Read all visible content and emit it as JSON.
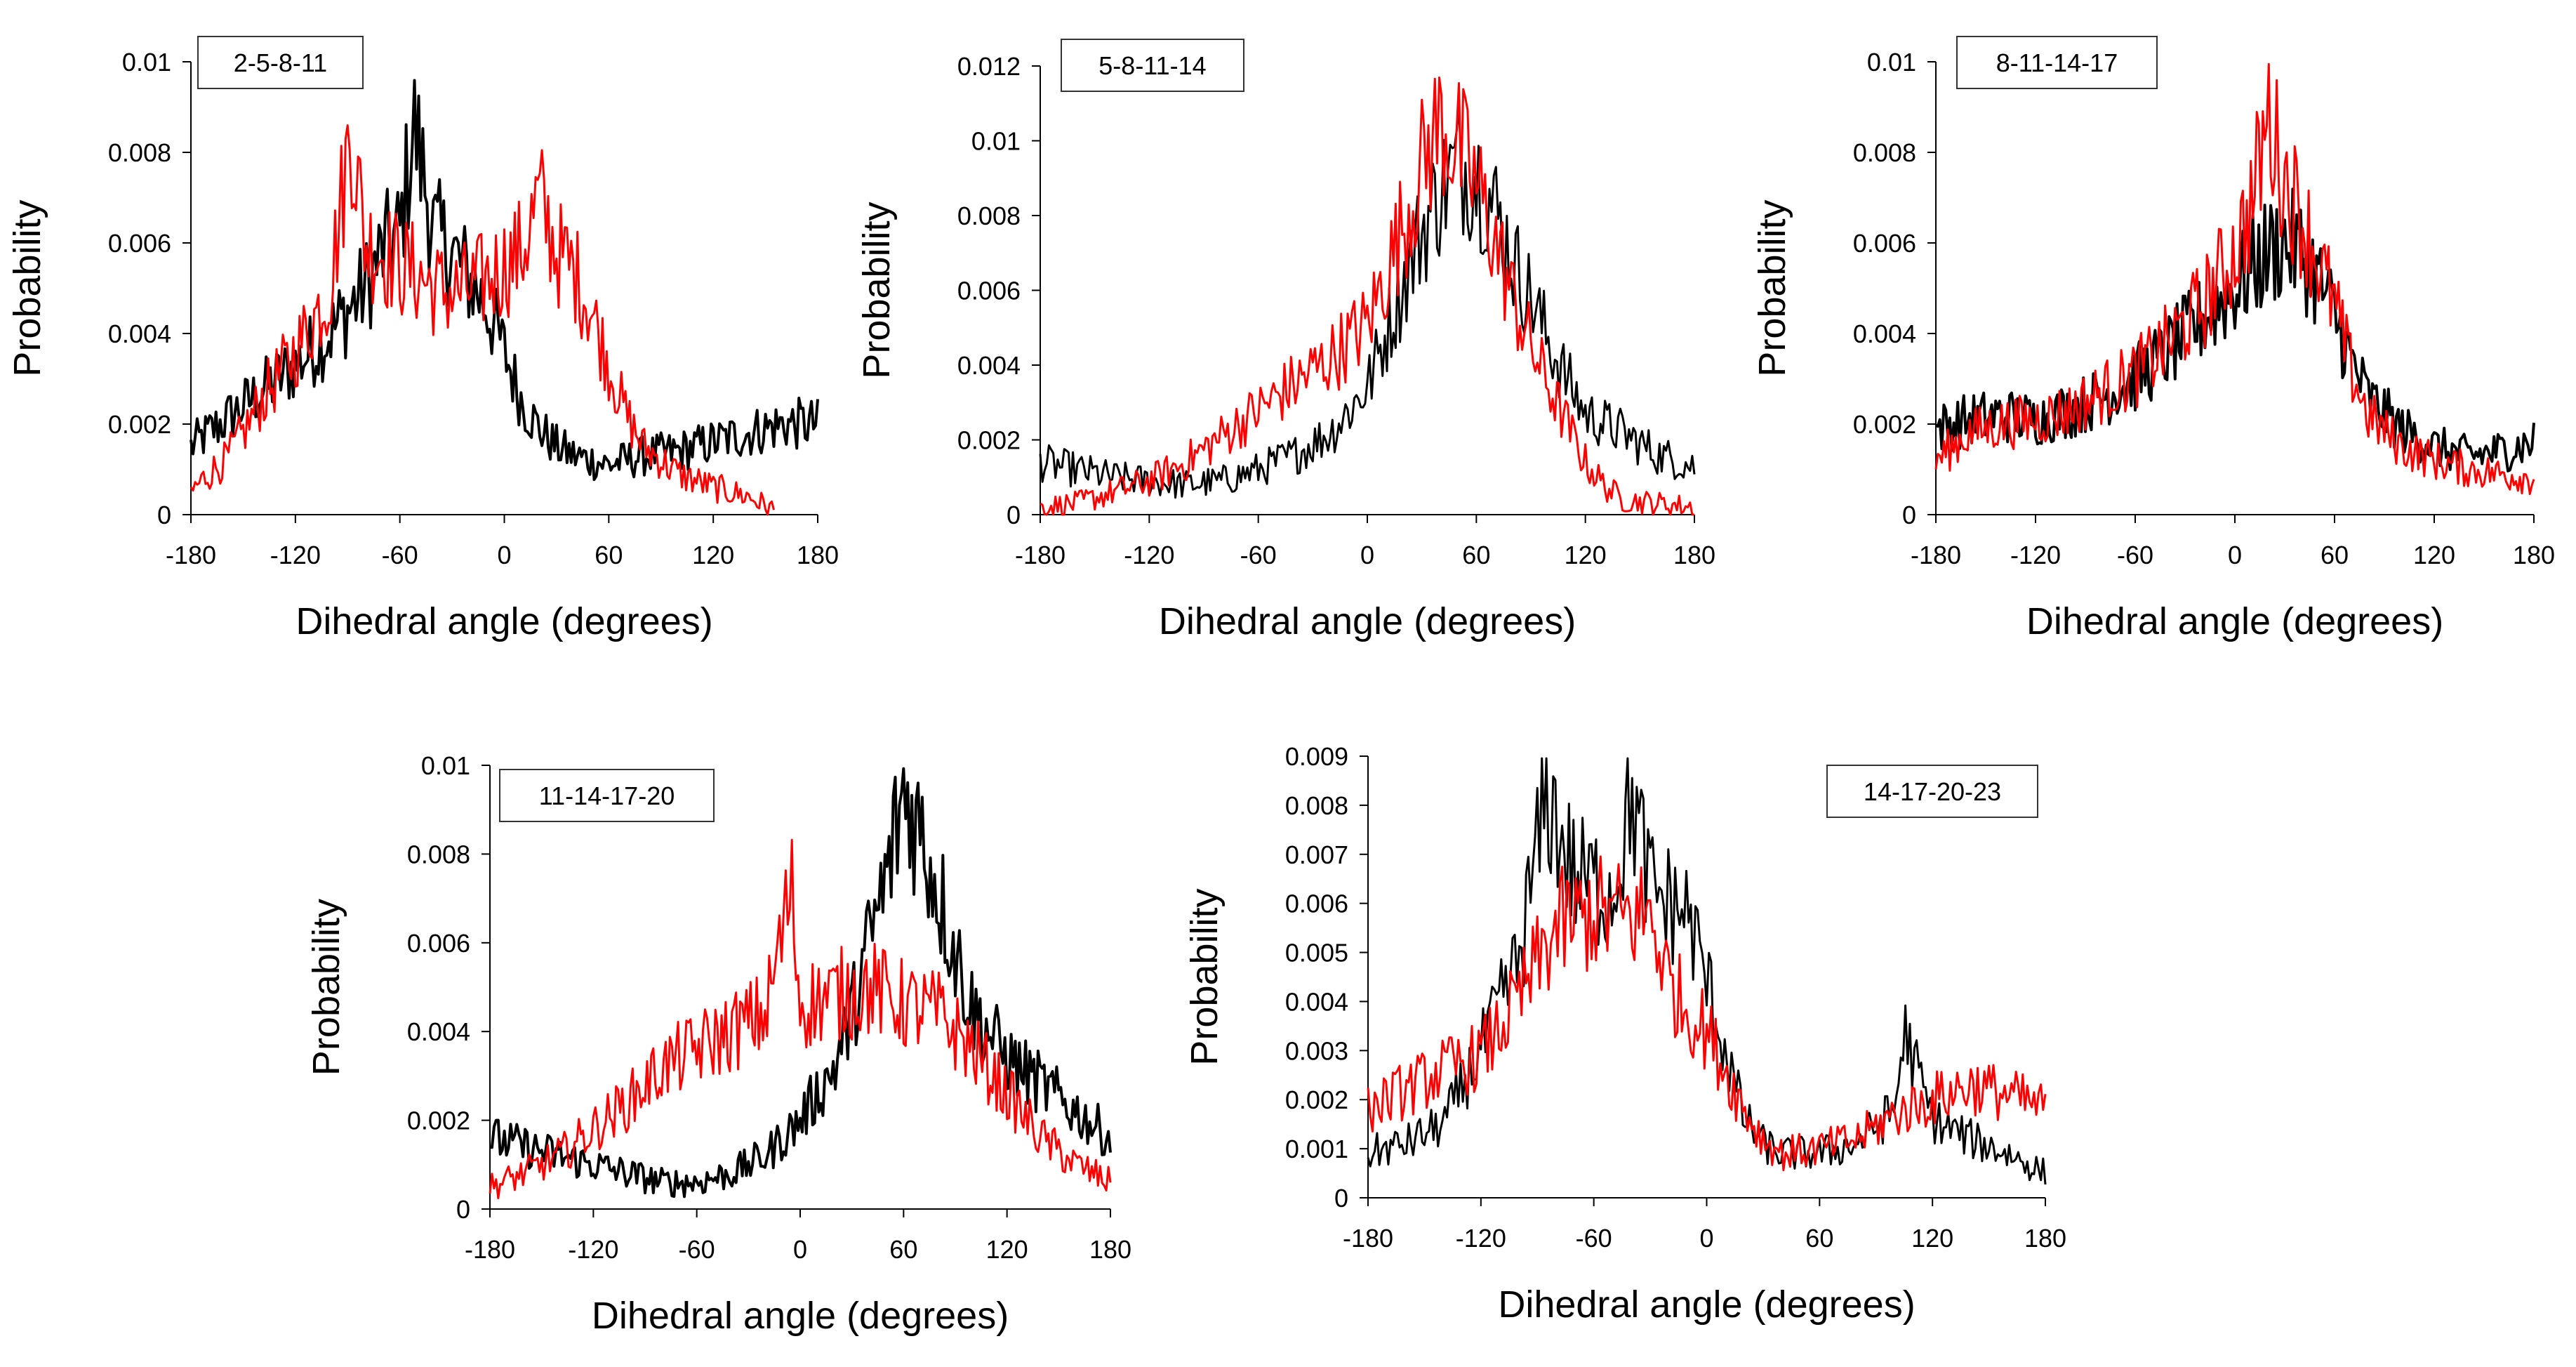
{
  "colors": {
    "series_black": "#000000",
    "series_red": "#ff0000",
    "axis": "#000000"
  },
  "chart_data": [
    {
      "type": "line",
      "label": "2-5-8-11",
      "xlabel": "Dihedral angle (degrees)",
      "ylabel": "Probability",
      "xlim": [
        -180,
        180
      ],
      "ylim": [
        0,
        0.01
      ],
      "xticks": [
        "-180",
        "-120",
        "-60",
        "0",
        "60",
        "120",
        "180"
      ],
      "yticks": [
        "0",
        "0.002",
        "0.004",
        "0.006",
        "0.008",
        "0.01"
      ],
      "series": [
        {
          "name": "black",
          "color": "#000000",
          "x": [
            -180,
            -160,
            -140,
            -120,
            -100,
            -80,
            -70,
            -60,
            -52,
            -40,
            -30,
            -20,
            -10,
            0,
            10,
            20,
            30,
            40,
            50,
            60,
            80,
            100,
            120,
            140,
            160,
            180
          ],
          "y": [
            0.0015,
            0.0021,
            0.0027,
            0.0033,
            0.004,
            0.005,
            0.0058,
            0.0062,
            0.0086,
            0.0062,
            0.0058,
            0.0052,
            0.0046,
            0.0036,
            0.0025,
            0.0019,
            0.0015,
            0.0013,
            0.0012,
            0.0011,
            0.0013,
            0.0014,
            0.0016,
            0.0018,
            0.002,
            0.002
          ]
        },
        {
          "name": "red",
          "color": "#ff0000",
          "x": [
            -180,
            -170,
            -160,
            -150,
            -140,
            -120,
            -100,
            -88,
            -80,
            -70,
            -60,
            -50,
            -40,
            -30,
            -20,
            -10,
            0,
            10,
            20,
            30,
            40,
            50,
            60,
            70,
            80,
            100,
            120,
            140,
            150,
            155
          ],
          "y": [
            0.0005,
            0.0009,
            0.0012,
            0.0018,
            0.0025,
            0.0036,
            0.005,
            0.0086,
            0.006,
            0.0058,
            0.0055,
            0.0053,
            0.005,
            0.0049,
            0.005,
            0.0052,
            0.0055,
            0.0058,
            0.007,
            0.0058,
            0.0054,
            0.0045,
            0.0033,
            0.0022,
            0.0015,
            0.0009,
            0.0006,
            0.0004,
            0.0002,
            0.0001
          ]
        }
      ]
    },
    {
      "type": "line",
      "label": "5-8-11-14",
      "xlabel": "Dihedral angle (degrees)",
      "ylabel": "Probability",
      "xlim": [
        -180,
        180
      ],
      "ylim": [
        0,
        0.012
      ],
      "xticks": [
        "-180",
        "-120",
        "-60",
        "0",
        "60",
        "120",
        "180"
      ],
      "yticks": [
        "0",
        "0.002",
        "0.004",
        "0.006",
        "0.008",
        "0.01",
        "0.012"
      ],
      "series": [
        {
          "name": "black",
          "color": "#000000",
          "x": [
            -180,
            -160,
            -140,
            -120,
            -100,
            -80,
            -60,
            -40,
            -20,
            0,
            10,
            20,
            30,
            40,
            50,
            60,
            70,
            80,
            90,
            100,
            110,
            120,
            140,
            160,
            180
          ],
          "y": [
            0.0014,
            0.0012,
            0.001,
            0.0009,
            0.0008,
            0.0009,
            0.0012,
            0.0016,
            0.0022,
            0.0034,
            0.0048,
            0.0062,
            0.0076,
            0.0086,
            0.0094,
            0.0091,
            0.0082,
            0.0068,
            0.0058,
            0.0046,
            0.0036,
            0.0027,
            0.0022,
            0.0016,
            0.0013
          ]
        },
        {
          "name": "red",
          "color": "#ff0000",
          "x": [
            -180,
            -160,
            -140,
            -120,
            -100,
            -80,
            -60,
            -40,
            -20,
            0,
            10,
            20,
            30,
            40,
            50,
            60,
            70,
            80,
            90,
            100,
            110,
            120,
            130,
            140,
            160,
            180
          ],
          "y": [
            0.0002,
            0.0003,
            0.0006,
            0.0009,
            0.0014,
            0.0021,
            0.0028,
            0.0035,
            0.0042,
            0.0051,
            0.0064,
            0.0078,
            0.0093,
            0.0105,
            0.0098,
            0.0088,
            0.0074,
            0.0058,
            0.0045,
            0.0034,
            0.0024,
            0.0014,
            0.0008,
            0.0004,
            0.0003,
            0.0002
          ]
        }
      ]
    },
    {
      "type": "line",
      "label": "8-11-14-17",
      "xlabel": "Dihedral angle (degrees)",
      "ylabel": "Probability",
      "xlim": [
        -180,
        180
      ],
      "ylim": [
        0,
        0.01
      ],
      "xticks": [
        "-180",
        "-120",
        "-60",
        "0",
        "60",
        "120",
        "180"
      ],
      "yticks": [
        "0",
        "0.002",
        "0.004",
        "0.006",
        "0.008",
        "0.01"
      ],
      "series": [
        {
          "name": "black",
          "color": "#000000",
          "x": [
            -180,
            -160,
            -140,
            -120,
            -100,
            -80,
            -60,
            -40,
            -20,
            0,
            10,
            20,
            30,
            40,
            50,
            60,
            70,
            80,
            100,
            120,
            140,
            160,
            180
          ],
          "y": [
            0.0019,
            0.0021,
            0.0022,
            0.0021,
            0.0023,
            0.0026,
            0.003,
            0.0036,
            0.0043,
            0.005,
            0.0054,
            0.0058,
            0.006,
            0.0058,
            0.0052,
            0.0044,
            0.0034,
            0.0026,
            0.0019,
            0.0015,
            0.0013,
            0.0014,
            0.0016
          ]
        },
        {
          "name": "red",
          "color": "#ff0000",
          "x": [
            -180,
            -160,
            -140,
            -120,
            -100,
            -80,
            -60,
            -40,
            -20,
            0,
            10,
            20,
            30,
            40,
            50,
            60,
            70,
            80,
            100,
            120,
            140,
            160,
            180
          ],
          "y": [
            0.0012,
            0.0018,
            0.002,
            0.0021,
            0.0023,
            0.0027,
            0.0031,
            0.0038,
            0.0046,
            0.0058,
            0.0068,
            0.0088,
            0.0074,
            0.0066,
            0.0056,
            0.0046,
            0.0032,
            0.0022,
            0.0015,
            0.0012,
            0.001,
            0.0009,
            0.0008
          ]
        }
      ]
    },
    {
      "type": "line",
      "label": "11-14-17-20",
      "xlabel": "Dihedral angle (degrees)",
      "ylabel": "Probability",
      "xlim": [
        -180,
        180
      ],
      "ylim": [
        0,
        0.01
      ],
      "xticks": [
        "-180",
        "-120",
        "-60",
        "0",
        "60",
        "120",
        "180"
      ],
      "yticks": [
        "0",
        "0.002",
        "0.004",
        "0.006",
        "0.008",
        "0.01"
      ],
      "series": [
        {
          "name": "black",
          "color": "#000000",
          "x": [
            -180,
            -160,
            -140,
            -120,
            -100,
            -80,
            -60,
            -40,
            -20,
            0,
            20,
            30,
            40,
            50,
            60,
            70,
            80,
            90,
            100,
            120,
            140,
            160,
            180
          ],
          "y": [
            0.0016,
            0.0014,
            0.0012,
            0.001,
            0.0008,
            0.0006,
            0.0006,
            0.0008,
            0.0012,
            0.002,
            0.0032,
            0.0044,
            0.006,
            0.0074,
            0.0094,
            0.0085,
            0.0072,
            0.0058,
            0.0045,
            0.0034,
            0.0028,
            0.0022,
            0.0016
          ]
        },
        {
          "name": "red",
          "color": "#ff0000",
          "x": [
            -180,
            -160,
            -140,
            -120,
            -100,
            -80,
            -60,
            -40,
            -20,
            -5,
            0,
            20,
            40,
            60,
            80,
            100,
            120,
            140,
            160,
            180
          ],
          "y": [
            0.0005,
            0.0008,
            0.0012,
            0.0018,
            0.0024,
            0.0032,
            0.0036,
            0.004,
            0.0044,
            0.0072,
            0.0046,
            0.0048,
            0.005,
            0.0046,
            0.0044,
            0.0036,
            0.0026,
            0.0016,
            0.001,
            0.0006
          ]
        }
      ]
    },
    {
      "type": "line",
      "label": "14-17-20-23",
      "xlabel": "Dihedral angle (degrees)",
      "ylabel": "Probability",
      "xlim": [
        -180,
        180
      ],
      "ylim": [
        0,
        0.009
      ],
      "xticks": [
        "-180",
        "-120",
        "-60",
        "0",
        "60",
        "120",
        "180"
      ],
      "yticks": [
        "0",
        "0.001",
        "0.002",
        "0.003",
        "0.004",
        "0.005",
        "0.006",
        "0.007",
        "0.008",
        "0.009"
      ],
      "series": [
        {
          "name": "black",
          "color": "#000000",
          "x": [
            -180,
            -160,
            -140,
            -120,
            -100,
            -85,
            -70,
            -60,
            -50,
            -40,
            -30,
            -20,
            -10,
            0,
            10,
            20,
            30,
            40,
            60,
            80,
            100,
            105,
            120,
            140,
            160,
            180
          ],
          "y": [
            0.0009,
            0.0011,
            0.0015,
            0.003,
            0.0048,
            0.0082,
            0.0065,
            0.0064,
            0.0062,
            0.0082,
            0.0063,
            0.006,
            0.0058,
            0.0044,
            0.003,
            0.0016,
            0.0011,
            0.0009,
            0.0009,
            0.0011,
            0.0018,
            0.0034,
            0.0016,
            0.0012,
            0.0009,
            0.0005
          ]
        },
        {
          "name": "red",
          "color": "#ff0000",
          "x": [
            -180,
            -160,
            -140,
            -120,
            -100,
            -80,
            -60,
            -40,
            -30,
            -20,
            -10,
            0,
            10,
            20,
            30,
            40,
            60,
            80,
            100,
            120,
            140,
            160,
            180
          ],
          "y": [
            0.0018,
            0.0022,
            0.0026,
            0.0029,
            0.004,
            0.0055,
            0.0058,
            0.0057,
            0.0058,
            0.0044,
            0.0038,
            0.0034,
            0.0026,
            0.0018,
            0.0012,
            0.0009,
            0.001,
            0.0012,
            0.0017,
            0.002,
            0.0023,
            0.0021,
            0.0018
          ]
        }
      ]
    }
  ]
}
